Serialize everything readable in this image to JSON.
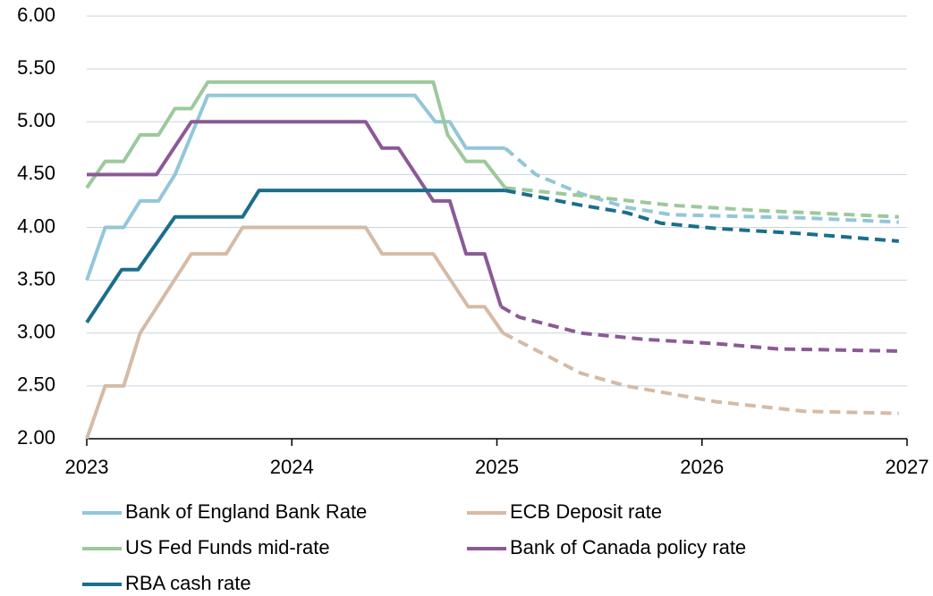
{
  "chart_data": {
    "type": "line",
    "xlim": [
      2023,
      2027
    ],
    "xticks": [
      2023,
      2024,
      2025,
      2026,
      2027
    ],
    "ylim": [
      2,
      6
    ],
    "yticks": [
      {
        "value": 2,
        "label": "2.00"
      },
      {
        "value": 2.5,
        "label": "2.50"
      },
      {
        "value": 3,
        "label": "3.00"
      },
      {
        "value": 3.5,
        "label": "3.50"
      },
      {
        "value": 4,
        "label": "4.00"
      },
      {
        "value": 4.5,
        "label": "4.50"
      },
      {
        "value": 5,
        "label": "5.00"
      },
      {
        "value": 5.5,
        "label": "5.50"
      },
      {
        "value": 6,
        "label": "6.00"
      }
    ],
    "grid": true,
    "legend": "bottom",
    "series": [
      {
        "name": "Bank of England Bank Rate",
        "color": "#93c6d9",
        "x": [
          2023.0,
          2023.09,
          2023.18,
          2023.26,
          2023.35,
          2023.43,
          2023.59,
          2024.6,
          2024.7,
          2024.77,
          2024.85,
          2025.04
        ],
        "values": [
          3.5,
          4.0,
          4.0,
          4.25,
          4.25,
          4.5,
          5.25,
          5.25,
          5.0,
          5.0,
          4.75,
          4.75
        ],
        "forecast_x": [
          2025.04,
          2025.19,
          2025.41,
          2025.63,
          2025.85,
          2026.07,
          2026.5,
          2026.96
        ],
        "forecast_values": [
          4.75,
          4.5,
          4.32,
          4.19,
          4.12,
          4.11,
          4.09,
          4.05
        ]
      },
      {
        "name": "ECB Deposit rate",
        "color": "#d5bba6",
        "x": [
          2023.0,
          2023.09,
          2023.18,
          2023.26,
          2023.51,
          2023.68,
          2023.76,
          2024.36,
          2024.44,
          2024.69,
          2024.86,
          2024.94,
          2025.03
        ],
        "values": [
          2.0,
          2.5,
          2.5,
          3.0,
          3.75,
          3.75,
          4.0,
          4.0,
          3.75,
          3.75,
          3.25,
          3.25,
          3.0
        ],
        "forecast_x": [
          2025.03,
          2025.41,
          2025.63,
          2026.07,
          2026.5,
          2026.96
        ],
        "forecast_values": [
          3.0,
          2.62,
          2.5,
          2.35,
          2.26,
          2.24
        ]
      },
      {
        "name": "US Fed Funds mid-rate",
        "color": "#9dc89c",
        "x": [
          2023.0,
          2023.09,
          2023.18,
          2023.26,
          2023.35,
          2023.43,
          2023.51,
          2023.59,
          2024.69,
          2024.76,
          2024.85,
          2024.94,
          2025.04
        ],
        "values": [
          4.375,
          4.625,
          4.625,
          4.875,
          4.875,
          5.125,
          5.125,
          5.375,
          5.375,
          4.875,
          4.625,
          4.625,
          4.375
        ],
        "forecast_x": [
          2025.04,
          2025.41,
          2025.85,
          2026.28,
          2026.96
        ],
        "forecast_values": [
          4.375,
          4.3,
          4.21,
          4.16,
          4.1
        ]
      },
      {
        "name": "Bank of Canada policy rate",
        "color": "#8b5a96",
        "x": [
          2023.0,
          2023.34,
          2023.51,
          2024.36,
          2024.44,
          2024.52,
          2024.69,
          2024.77,
          2024.85,
          2024.94,
          2025.02
        ],
        "values": [
          4.5,
          4.5,
          5.0,
          5.0,
          4.75,
          4.75,
          4.25,
          4.25,
          3.75,
          3.75,
          3.25
        ],
        "forecast_x": [
          2025.02,
          2025.11,
          2025.41,
          2025.72,
          2026.07,
          2026.37,
          2026.96
        ],
        "forecast_values": [
          3.25,
          3.15,
          3.0,
          2.94,
          2.9,
          2.85,
          2.83
        ]
      },
      {
        "name": "RBA cash rate",
        "color": "#1b6e8c",
        "x": [
          2023.0,
          2023.17,
          2023.25,
          2023.43,
          2023.76,
          2023.84,
          2025.04
        ],
        "values": [
          3.1,
          3.6,
          3.6,
          4.1,
          4.1,
          4.35,
          4.35
        ],
        "forecast_x": [
          2025.04,
          2025.41,
          2025.63,
          2025.8,
          2026.07,
          2026.5,
          2026.96
        ],
        "forecast_values": [
          4.35,
          4.21,
          4.14,
          4.04,
          3.99,
          3.94,
          3.87
        ]
      }
    ]
  }
}
